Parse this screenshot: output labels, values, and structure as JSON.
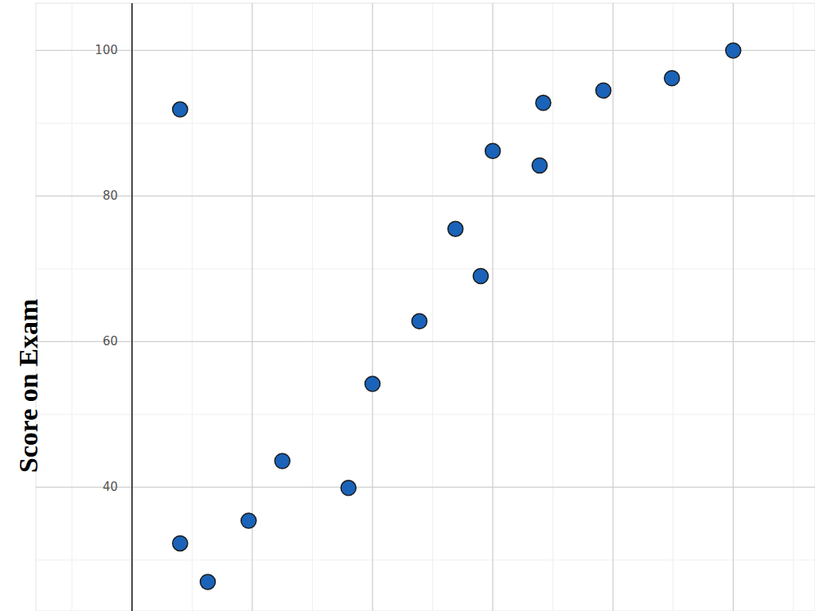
{
  "chart_data": {
    "type": "scatter",
    "y_label": "Score on Exam",
    "x": [
      0.4,
      0.4,
      0.63,
      0.97,
      1.25,
      1.8,
      2.0,
      2.39,
      2.69,
      2.9,
      3.0,
      3.39,
      3.42,
      3.92,
      4.49,
      5.0
    ],
    "values": [
      91.9,
      32.3,
      27.0,
      35.4,
      43.6,
      39.9,
      54.2,
      62.8,
      75.5,
      69.0,
      86.2,
      84.2,
      92.8,
      94.5,
      96.2,
      100
    ],
    "color": "#1a63b8",
    "marker": "circle",
    "xlim": [
      -0.8,
      5.68
    ],
    "xticks": [
      0,
      1,
      2,
      3,
      4,
      5
    ],
    "ylim": [
      23,
      106.5
    ],
    "yticks": [
      40,
      60,
      80,
      100
    ],
    "grid": true,
    "tick_labels": "y"
  }
}
